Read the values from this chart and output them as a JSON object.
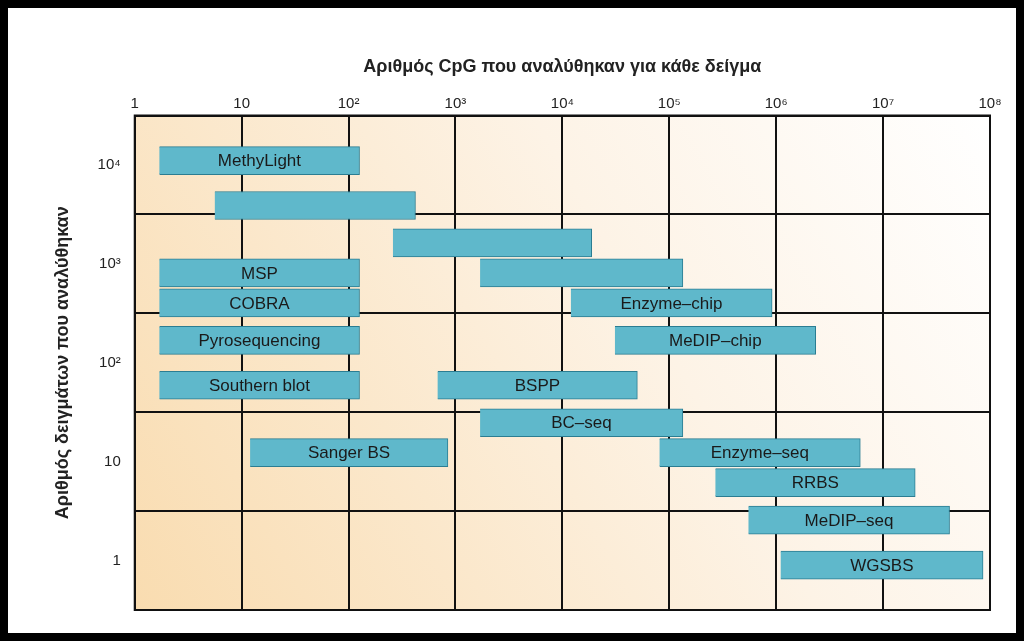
{
  "chart_data": {
    "type": "bar",
    "orientation": "horizontal",
    "xlabel": "Αριθμός CpG που αναλύθηκαν για κάθε δείγμα",
    "ylabel": "Αριθμός δειγμάτων που αναλύθηκαν",
    "categories": [
      "10⁴",
      "10³",
      "10²",
      "10",
      "1"
    ],
    "series": [
      {
        "color": "#5fb8cb",
        "base": [
          1.7,
          260,
          1.7,
          null,
          null
        ],
        "values": [
          125,
          18540,
          125,
          null,
          null
        ],
        "value_labels": [
          "MethyLight",
          null,
          "Pyrosequencing",
          null,
          null
        ]
      },
      {
        "color": "#5fb8cb",
        "base": [
          null,
          null,
          31000,
          1700,
          550000
        ],
        "values": [
          null,
          null,
          2310000,
          132300,
          41300000
        ],
        "value_labels": [
          null,
          null,
          "MeDIP–chip",
          "BC–seq",
          "MeDIP–seq"
        ]
      },
      {
        "color": "#5fb8cb",
        "base": [
          5.6,
          1.7,
          1.7,
          12,
          null
        ],
        "values": [
          417,
          125,
          125,
          838,
          null
        ],
        "value_labels": [
          null,
          "MSP",
          "Southern blot",
          "Sanger BS",
          null
        ]
      },
      {
        "color": "#5fb8cb",
        "base": [
          null,
          1700,
          680,
          81000,
          1100000
        ],
        "values": [
          null,
          132300,
          49600,
          6040000,
          85000000
        ],
        "value_labels": [
          null,
          null,
          "BSPP",
          "Enzyme–seq",
          "WGSBS"
        ]
      },
      {
        "color": "#5fb8cb",
        "base": [
          null,
          1.7,
          null,
          null,
          null
        ],
        "values": [
          null,
          125,
          null,
          null,
          null
        ],
        "value_labels": [
          null,
          "COBRA",
          null,
          null,
          null
        ]
      },
      {
        "color": "#5fb8cb",
        "base": [
          null,
          12000,
          null,
          270000,
          null
        ],
        "values": [
          null,
          904000,
          null,
          19700000,
          null
        ],
        "value_labels": [
          null,
          "Enzyme–chip",
          null,
          "RRBS",
          null
        ]
      }
    ],
    "log": "x",
    "xlim": [
      1,
      100000000
    ],
    "xticks": [
      1,
      10,
      {
        "value": 100,
        "label": "10²"
      },
      {
        "value": 1000,
        "label": "10³"
      },
      {
        "value": 10000,
        "label": "10⁴"
      },
      {
        "value": 100000,
        "label": "10⁵"
      },
      {
        "value": 1000000,
        "label": "10⁶"
      },
      {
        "value": 10000000,
        "label": "10⁷"
      },
      {
        "value": 100000000,
        "label": "10⁸"
      }
    ],
    "grid": true,
    "legend": false
  }
}
